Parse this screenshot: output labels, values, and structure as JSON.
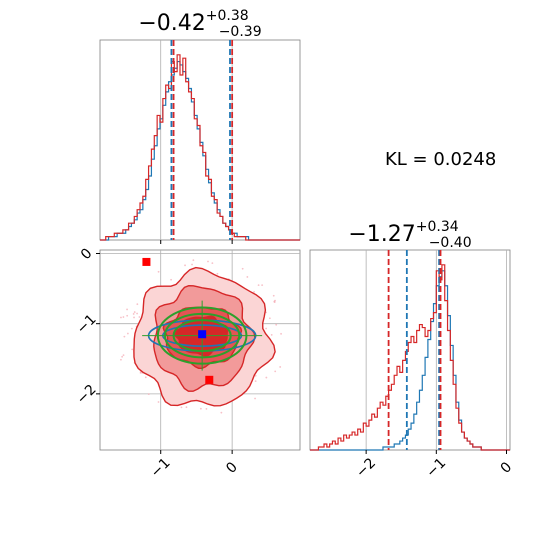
{
  "chart_data": [
    {
      "panel": "marginal-param-1",
      "type": "histogram",
      "title_main": "−0.42",
      "title_sup": "+0.38",
      "title_sub": "−0.39",
      "xlim": [
        -1.85,
        0.95
      ],
      "xticks": [
        -1,
        0
      ],
      "vlines": {
        "blue": [
          -0.85,
          -0.03
        ],
        "red": [
          -0.82,
          0.0
        ]
      },
      "series": [
        {
          "color": "#1f77b4",
          "bin_edges_start": -1.85,
          "bin_width": 0.04,
          "heights": [
            0,
            0,
            0,
            1,
            1,
            1,
            2,
            2,
            2,
            3,
            4,
            5,
            6,
            8,
            9,
            12,
            15,
            19,
            24,
            28,
            33,
            36,
            40,
            44,
            47,
            49,
            51,
            53,
            52,
            50,
            48,
            45,
            41,
            37,
            33,
            29,
            25,
            21,
            17,
            14,
            11,
            9,
            7,
            5,
            4,
            3,
            2,
            2,
            1,
            1,
            1,
            1,
            0,
            0,
            0,
            0,
            0,
            0,
            0,
            0,
            0,
            0,
            0,
            0,
            0,
            0,
            0,
            0,
            0,
            0
          ]
        },
        {
          "color": "#d62728",
          "bin_edges_start": -1.85,
          "bin_width": 0.04,
          "heights": [
            0,
            0,
            1,
            1,
            1,
            2,
            2,
            2,
            3,
            3,
            5,
            5,
            7,
            9,
            11,
            13,
            18,
            22,
            27,
            31,
            37,
            35,
            42,
            46,
            45,
            53,
            50,
            55,
            49,
            54,
            47,
            44,
            42,
            36,
            34,
            28,
            26,
            19,
            18,
            13,
            12,
            8,
            7,
            5,
            4,
            3,
            2,
            1,
            1,
            1,
            1,
            0,
            0,
            0,
            0,
            0,
            0,
            0,
            0,
            0,
            0,
            0,
            0,
            0,
            0,
            0,
            0,
            0,
            0,
            0
          ]
        }
      ],
      "annotation": "KL = 0.0248"
    },
    {
      "panel": "marginal-param-2",
      "type": "histogram",
      "title_main": "−1.27",
      "title_sup": "+0.34",
      "title_sub": "−0.40",
      "xlim": [
        -2.8,
        0.05
      ],
      "xticks": [
        -2,
        -1,
        0
      ],
      "xtick_labels": [
        "−2",
        "−1",
        "0"
      ],
      "vlines": {
        "blue": [
          -1.42,
          -0.96
        ],
        "red": [
          -1.68,
          -0.94
        ]
      },
      "series": [
        {
          "color": "#1f77b4",
          "bin_edges_start": -2.8,
          "bin_width": 0.04,
          "heights": [
            0,
            0,
            0,
            0,
            0,
            0,
            0,
            0,
            0,
            0,
            0,
            0,
            0,
            0,
            0,
            0,
            0,
            0,
            0,
            0,
            0,
            0,
            0,
            0,
            0,
            0,
            1,
            1,
            1,
            1,
            2,
            2,
            3,
            4,
            5,
            7,
            9,
            12,
            16,
            20,
            25,
            31,
            37,
            43,
            49,
            55,
            58,
            60,
            55,
            45,
            35,
            25,
            16,
            10,
            6,
            4,
            3,
            2,
            1,
            1,
            1,
            0,
            0,
            0,
            0,
            0,
            0,
            0,
            0,
            0,
            0,
            0
          ]
        },
        {
          "color": "#d62728",
          "bin_edges_start": -2.8,
          "bin_width": 0.04,
          "heights": [
            0,
            0,
            0,
            1,
            1,
            2,
            1,
            2,
            3,
            2,
            4,
            3,
            5,
            4,
            5,
            6,
            5,
            7,
            6,
            9,
            8,
            10,
            12,
            11,
            14,
            16,
            15,
            18,
            20,
            22,
            25,
            28,
            26,
            30,
            33,
            36,
            38,
            36,
            40,
            42,
            41,
            38,
            40,
            44,
            46,
            60,
            57,
            62,
            50,
            40,
            30,
            22,
            14,
            9,
            6,
            4,
            3,
            2,
            1,
            1,
            1,
            0,
            0,
            0,
            0,
            0,
            0,
            0,
            0,
            0,
            0,
            0
          ]
        }
      ]
    },
    {
      "panel": "joint-param-1-vs-param-2",
      "type": "contour",
      "xlim": [
        -1.85,
        0.95
      ],
      "ylim": [
        -2.8,
        0.05
      ],
      "xticks": [
        -1,
        0
      ],
      "xtick_labels": [
        "−1",
        "0"
      ],
      "yticks": [
        0,
        -1,
        -2
      ],
      "ytick_labels": [
        "0",
        "−1",
        "−2"
      ],
      "contours": {
        "red_filled_levels": [
          {
            "cx": -0.42,
            "cy": -1.22,
            "rx": 0.95,
            "ry": 0.95,
            "fill": "#fbd5d5"
          },
          {
            "cx": -0.42,
            "cy": -1.2,
            "rx": 0.68,
            "ry": 0.72,
            "fill": "#f29a9a"
          },
          {
            "cx": -0.42,
            "cy": -1.18,
            "rx": 0.52,
            "ry": 0.42,
            "fill": "#e45454"
          },
          {
            "cx": -0.42,
            "cy": -1.17,
            "rx": 0.36,
            "ry": 0.27,
            "fill": "#d62728"
          }
        ],
        "blue_levels": [
          {
            "cx": -0.42,
            "cy": -1.17,
            "rx": 0.75,
            "ry": 0.22
          },
          {
            "cx": -0.42,
            "cy": -1.17,
            "rx": 0.55,
            "ry": 0.15
          }
        ],
        "green_levels": [
          {
            "cx": -0.42,
            "cy": -1.17,
            "rx": 0.62,
            "ry": 0.4
          },
          {
            "cx": -0.42,
            "cy": -1.17,
            "rx": 0.52,
            "ry": 0.31
          },
          {
            "cx": -0.42,
            "cy": -1.17,
            "rx": 0.4,
            "ry": 0.22
          }
        ]
      },
      "markers": [
        {
          "color": "#ff0000",
          "x": -1.2,
          "y": -0.12
        },
        {
          "color": "#ff0000",
          "x": -0.32,
          "y": -1.8
        },
        {
          "color": "#0000ff",
          "x": -0.42,
          "y": -1.15
        }
      ],
      "crosshair": {
        "x": -0.42,
        "y": -1.17
      }
    }
  ]
}
